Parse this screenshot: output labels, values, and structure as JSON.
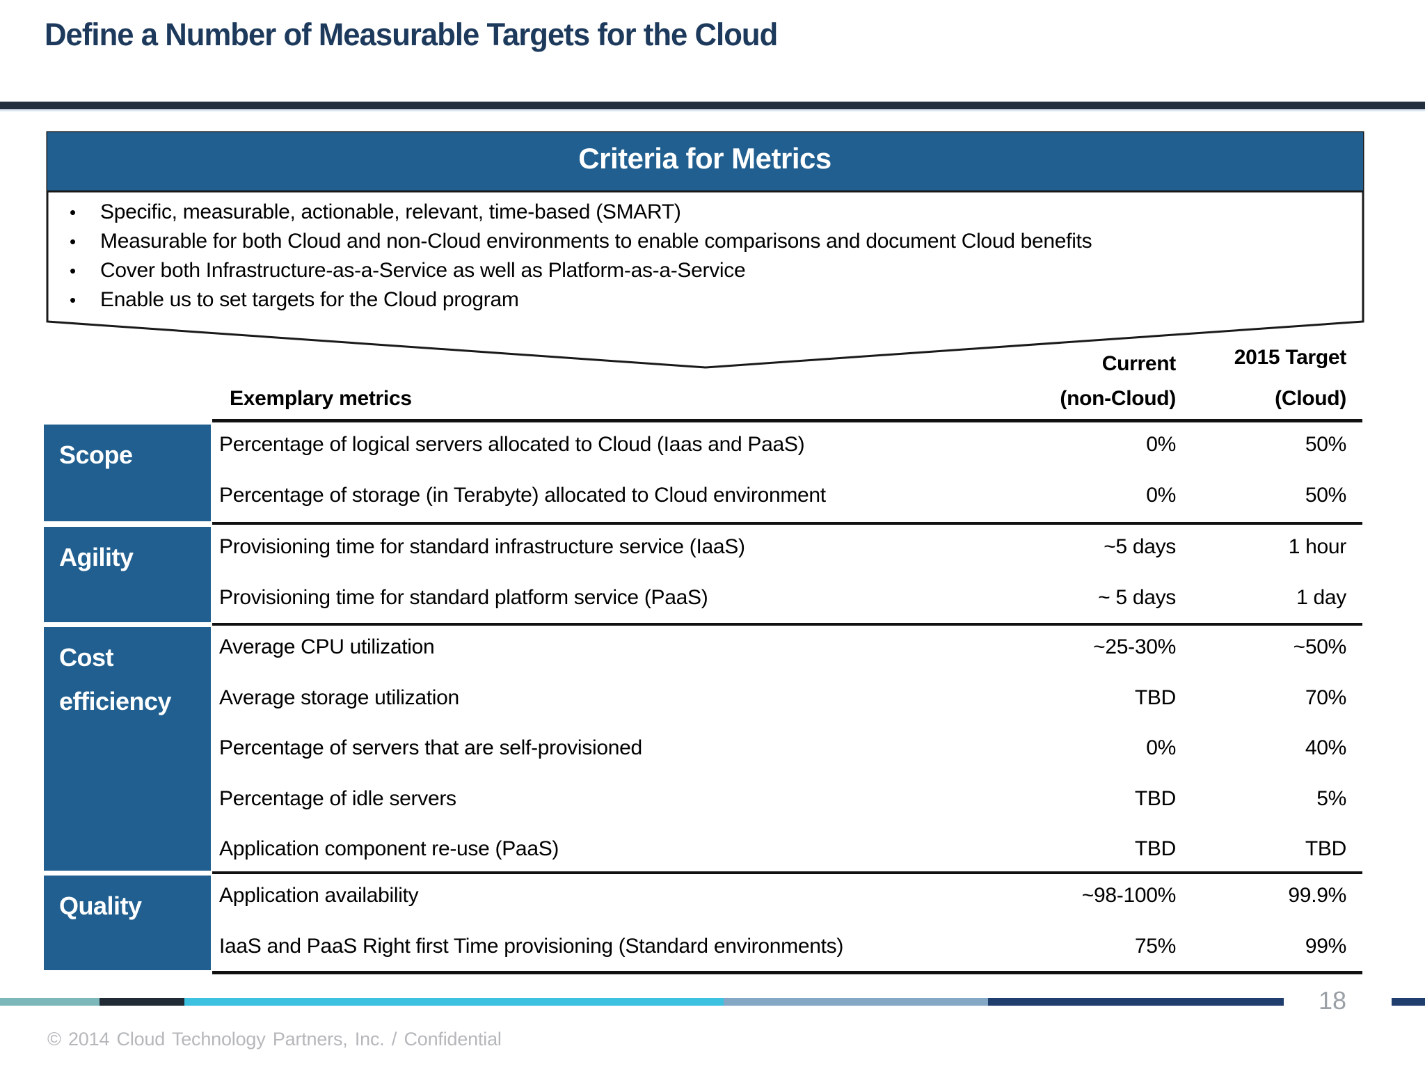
{
  "slide": {
    "title": "Define a Number of Measurable Targets for the Cloud",
    "page_number": "18",
    "footer_text": "© 2014 Cloud Technology Partners, Inc. / Confidential"
  },
  "criteria_box": {
    "title": "Criteria for Metrics",
    "bullet_glyph": "•",
    "bullets": [
      "Specific, measurable, actionable, relevant, time-based (SMART)",
      "Measurable for both Cloud and non-Cloud environments to enable comparisons and document Cloud benefits",
      "Cover both Infrastructure-as-a-Service as well as Platform-as-a-Service",
      "Enable us to set targets for the Cloud program"
    ]
  },
  "table": {
    "headers": {
      "metric": "Exemplary metrics",
      "current_line1": "Current",
      "current_line2": "(non-Cloud)",
      "target_line1": "2015 Target",
      "target_line2": "(Cloud)"
    },
    "sections": [
      {
        "label": "Scope",
        "rows": [
          {
            "metric": "Percentage of logical servers allocated to Cloud (Iaas and PaaS)",
            "current": "0%",
            "target": "50%"
          },
          {
            "metric": "Percentage of storage (in Terabyte) allocated to Cloud environment",
            "current": "0%",
            "target": "50%"
          }
        ]
      },
      {
        "label": "Agility",
        "rows": [
          {
            "metric": "Provisioning time for standard infrastructure service (IaaS)",
            "current": "~5 days",
            "target": "1 hour"
          },
          {
            "metric": "Provisioning time for standard platform service (PaaS)",
            "current": "~ 5 days",
            "target": "1 day"
          }
        ]
      },
      {
        "label": "Cost efficiency",
        "rows": [
          {
            "metric": "Average CPU utilization",
            "current": "~25-30%",
            "target": "~50%"
          },
          {
            "metric": "Average storage utilization",
            "current": "TBD",
            "target": "70%"
          },
          {
            "metric": "Percentage of servers that are self-provisioned",
            "current": "0%",
            "target": "40%"
          },
          {
            "metric": "Percentage of idle servers",
            "current": "TBD",
            "target": "5%"
          },
          {
            "metric": "Application component re-use (PaaS)",
            "current": "TBD",
            "target": "TBD"
          }
        ]
      },
      {
        "label": "Quality",
        "rows": [
          {
            "metric": "Application availability",
            "current": "~98-100%",
            "target": "99.9%"
          },
          {
            "metric": "IaaS and PaaS Right first Time provisioning (Standard environments)",
            "current": "75%",
            "target": "99%"
          }
        ]
      }
    ]
  },
  "colors": {
    "accent_blue": "#205f8f",
    "title_navy": "#1d3a5c",
    "rule_dark": "#232f3e",
    "footer_gray": "#b5b7ba",
    "page_number_gray": "#9aa0a6",
    "bar_teal": "#7cb7ba",
    "bar_dark": "#212b36",
    "bar_cyan": "#3cc1e0",
    "bar_steel": "#85a7c6",
    "bar_navy": "#1f3e6d"
  },
  "bottom_bar": {
    "segments": [
      {
        "name": "teal",
        "color_key": "bar_teal"
      },
      {
        "name": "dark-navy",
        "color_key": "bar_dark"
      },
      {
        "name": "cyan",
        "color_key": "bar_cyan"
      },
      {
        "name": "steel-blue",
        "color_key": "bar_steel"
      },
      {
        "name": "navy",
        "color_key": "bar_navy"
      },
      {
        "name": "navy-right",
        "color_key": "bar_navy"
      }
    ]
  }
}
